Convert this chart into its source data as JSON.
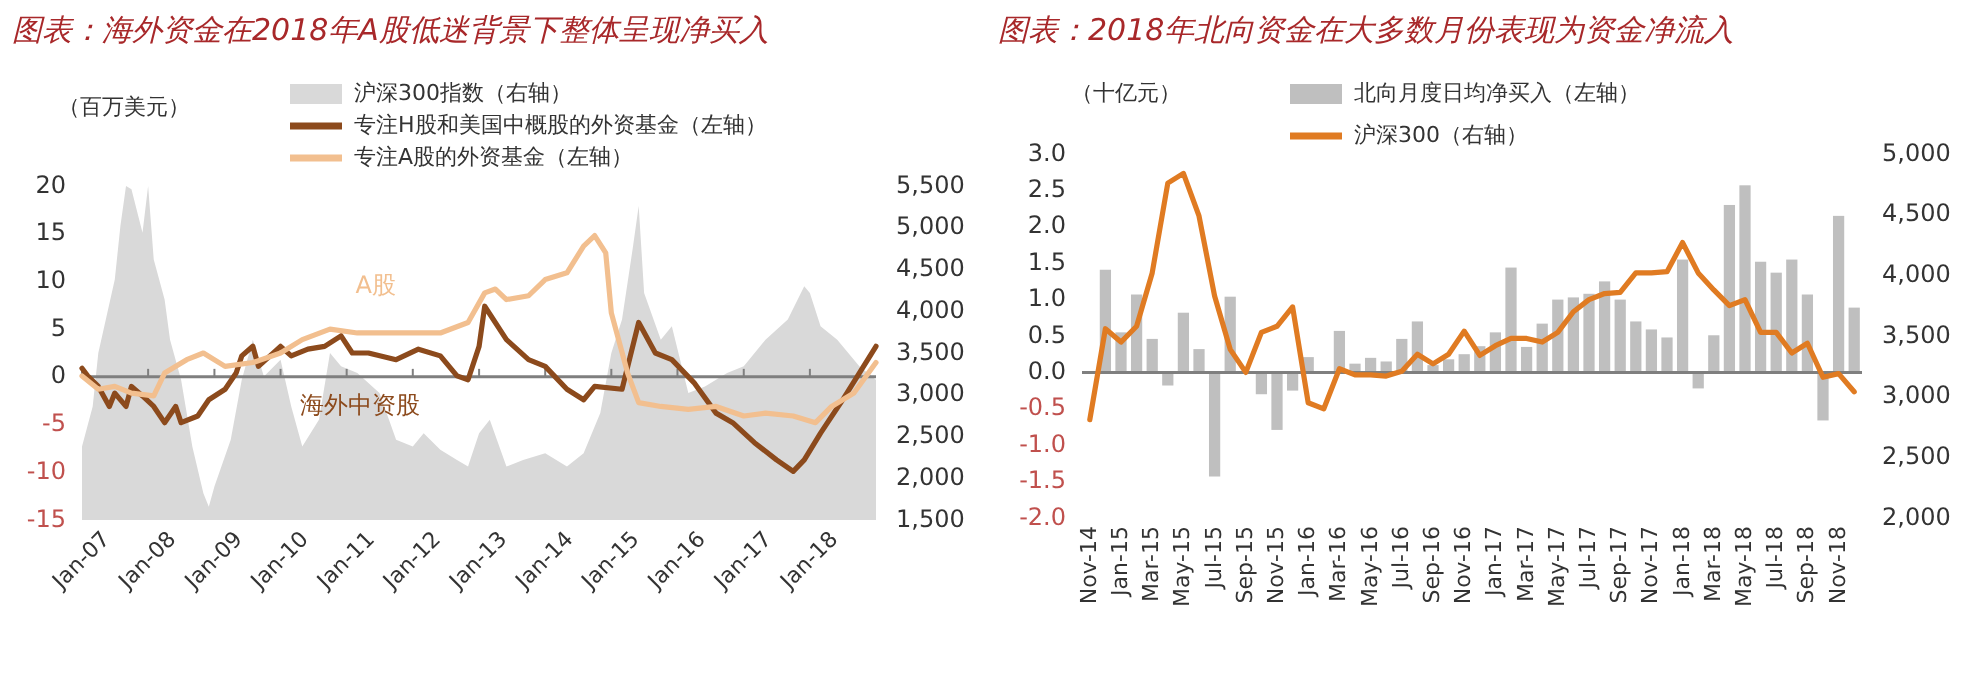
{
  "chart_data": [
    {
      "type": "line",
      "title": "图表：海外资金在2018年A股低迷背景下整体呈现净买入",
      "ylabel": "（百万美元）",
      "legend": "top",
      "xlim": [
        "2007-01",
        "2019-01"
      ],
      "xticks": [
        {
          "value": "2007-01",
          "label": "Jan-07"
        },
        {
          "value": "2008-01",
          "label": "Jan-08"
        },
        {
          "value": "2009-01",
          "label": "Jan-09"
        },
        {
          "value": "2010-01",
          "label": "Jan-10"
        },
        {
          "value": "2011-01",
          "label": "Jan-11"
        },
        {
          "value": "2012-01",
          "label": "Jan-12"
        },
        {
          "value": "2013-01",
          "label": "Jan-13"
        },
        {
          "value": "2014-01",
          "label": "Jan-14"
        },
        {
          "value": "2015-01",
          "label": "Jan-15"
        },
        {
          "value": "2016-01",
          "label": "Jan-16"
        },
        {
          "value": "2017-01",
          "label": "Jan-17"
        },
        {
          "value": "2018-01",
          "label": "Jan-18"
        }
      ],
      "ylim": [
        -15,
        20
      ],
      "yticks": [
        -15,
        -10,
        -5,
        0,
        5,
        10,
        15,
        20
      ],
      "y2lim": [
        1500,
        5500
      ],
      "y2ticks": [
        {
          "value": 1500,
          "label": "1,500"
        },
        {
          "value": 2000,
          "label": "2,000"
        },
        {
          "value": 2500,
          "label": "2,500"
        },
        {
          "value": 3000,
          "label": "3,000"
        },
        {
          "value": 3500,
          "label": "3,500"
        },
        {
          "value": 4000,
          "label": "4,000"
        },
        {
          "value": 4500,
          "label": "4,500"
        },
        {
          "value": 5000,
          "label": "5,000"
        },
        {
          "value": 5500,
          "label": "5,500"
        }
      ],
      "series": [
        {
          "name": "沪深300指数（右轴）",
          "type": "area",
          "axis": "y2",
          "color": "#d9d9d9",
          "x": [
            "2007-01",
            "2007-03",
            "2007-04",
            "2007-07",
            "2007-08",
            "2007-09",
            "2007-10",
            "2007-12",
            "2008-01",
            "2008-02",
            "2008-04",
            "2008-05",
            "2008-07",
            "2008-09",
            "2008-11",
            "2008-12",
            "2009-01",
            "2009-04",
            "2009-06",
            "2009-08",
            "2009-10",
            "2010-01",
            "2010-03",
            "2010-05",
            "2010-08",
            "2010-10",
            "2010-12",
            "2011-03",
            "2011-07",
            "2011-10",
            "2012-01",
            "2012-03",
            "2012-06",
            "2012-09",
            "2012-11",
            "2013-01",
            "2013-03",
            "2013-06",
            "2013-09",
            "2014-01",
            "2014-05",
            "2014-08",
            "2014-11",
            "2015-01",
            "2015-03",
            "2015-05",
            "2015-06",
            "2015-07",
            "2015-10",
            "2015-12",
            "2016-03",
            "2016-06",
            "2016-10",
            "2017-01",
            "2017-05",
            "2017-09",
            "2017-12",
            "2018-01",
            "2018-03",
            "2018-06",
            "2018-10",
            "2019-01"
          ],
          "values": [
            2380,
            2860,
            3500,
            4380,
            5020,
            5500,
            5460,
            4940,
            5500,
            4620,
            4140,
            3660,
            3180,
            2380,
            1820,
            1660,
            1900,
            2460,
            3180,
            3660,
            3220,
            3420,
            2860,
            2380,
            2700,
            3500,
            3340,
            3260,
            3020,
            2460,
            2380,
            2540,
            2340,
            2220,
            2140,
            2540,
            2700,
            2140,
            2220,
            2300,
            2140,
            2300,
            2780,
            3500,
            3900,
            4780,
            5260,
            4220,
            3660,
            3820,
            3020,
            3100,
            3260,
            3340,
            3660,
            3900,
            4300,
            4220,
            3820,
            3660,
            3340,
            3180
          ]
        },
        {
          "name": "专注H股和美国中概股的外资基金（左轴）",
          "color": "#8c4a1c",
          "x": [
            "2007-01",
            "2007-02",
            "2007-04",
            "2007-06",
            "2007-07",
            "2007-09",
            "2007-10",
            "2007-12",
            "2008-02",
            "2008-04",
            "2008-06",
            "2008-07",
            "2008-10",
            "2008-12",
            "2009-03",
            "2009-05",
            "2009-06",
            "2009-08",
            "2009-09",
            "2010-01",
            "2010-03",
            "2010-06",
            "2010-09",
            "2010-12",
            "2011-02",
            "2011-05",
            "2011-10",
            "2012-02",
            "2012-06",
            "2012-09",
            "2012-11",
            "2013-01",
            "2013-02",
            "2013-06",
            "2013-10",
            "2014-01",
            "2014-05",
            "2014-08",
            "2014-10",
            "2015-03",
            "2015-06",
            "2015-09",
            "2015-12",
            "2016-04",
            "2016-08",
            "2016-11",
            "2017-03",
            "2017-07",
            "2017-10",
            "2017-12",
            "2018-03",
            "2018-07",
            "2018-10",
            "2019-01"
          ],
          "values": [
            0.9,
            0.1,
            -1.0,
            -3.1,
            -1.7,
            -3.1,
            -1.0,
            -2.0,
            -3.1,
            -4.8,
            -3.1,
            -4.8,
            -4.1,
            -2.4,
            -1.3,
            0.4,
            2.2,
            3.2,
            1.1,
            3.2,
            2.2,
            2.9,
            3.2,
            4.3,
            2.5,
            2.5,
            1.8,
            2.9,
            2.2,
            0.1,
            -0.3,
            3.2,
            7.4,
            3.9,
            1.8,
            1.1,
            -1.3,
            -2.4,
            -1.0,
            -1.3,
            5.7,
            2.5,
            1.8,
            -0.6,
            -3.8,
            -4.8,
            -6.9,
            -8.7,
            -9.9,
            -8.7,
            -5.9,
            -2.4,
            0.4,
            3.2
          ]
        },
        {
          "name": "专注A股的外资基金（左轴）",
          "color": "#f2bf8f",
          "x": [
            "2007-01",
            "2007-04",
            "2007-07",
            "2007-10",
            "2008-02",
            "2008-04",
            "2008-08",
            "2008-11",
            "2009-03",
            "2009-08",
            "2010-01",
            "2010-05",
            "2010-10",
            "2011-03",
            "2011-10",
            "2012-06",
            "2012-11",
            "2013-02",
            "2013-04",
            "2013-06",
            "2013-10",
            "2014-01",
            "2014-05",
            "2014-08",
            "2014-10",
            "2014-12",
            "2015-01",
            "2015-04",
            "2015-06",
            "2015-10",
            "2016-03",
            "2016-08",
            "2017-01",
            "2017-05",
            "2017-10",
            "2018-02",
            "2018-05",
            "2018-09",
            "2019-01"
          ],
          "values": [
            0.1,
            -1.3,
            -1.0,
            -1.7,
            -2.0,
            0.4,
            1.8,
            2.5,
            1.1,
            1.5,
            2.5,
            3.9,
            5.0,
            4.6,
            4.6,
            4.6,
            5.7,
            8.8,
            9.2,
            8.1,
            8.5,
            10.2,
            10.9,
            13.7,
            14.8,
            13.0,
            6.7,
            0.4,
            -2.7,
            -3.1,
            -3.4,
            -3.1,
            -4.1,
            -3.8,
            -4.1,
            -4.8,
            -3.1,
            -1.7,
            1.5
          ]
        }
      ],
      "annotations": [
        "A股",
        "海外中资股"
      ]
    },
    {
      "type": "bar",
      "title": "图表：2018年北向资金在大多数月份表现为资金净流入",
      "ylabel": "（十亿元）",
      "legend": "top",
      "categories": [
        "Nov-14",
        null,
        "Jan-15",
        null,
        "Mar-15",
        null,
        "May-15",
        null,
        "Jul-15",
        null,
        "Sep-15",
        null,
        "Nov-15",
        null,
        "Jan-16",
        null,
        "Mar-16",
        null,
        "May-16",
        null,
        "Jul-16",
        null,
        "Sep-16",
        null,
        "Nov-16",
        null,
        "Jan-17",
        null,
        "Mar-17",
        null,
        "May-17",
        null,
        "Jul-17",
        null,
        "Sep-17",
        null,
        "Nov-17",
        null,
        "Jan-18",
        null,
        "Mar-18",
        null,
        "May-18",
        null,
        "Jul-18",
        null,
        "Sep-18",
        null,
        "Nov-18",
        null
      ],
      "ylim": [
        -2,
        3
      ],
      "yticks": [
        {
          "value": -2,
          "label": "-2.0"
        },
        {
          "value": -1.5,
          "label": "-1.5"
        },
        {
          "value": -1,
          "label": "-1.0"
        },
        {
          "value": -0.5,
          "label": "-0.5"
        },
        {
          "value": 0,
          "label": "0.0"
        },
        {
          "value": 0.5,
          "label": "0.5"
        },
        {
          "value": 1,
          "label": "1.0"
        },
        {
          "value": 1.5,
          "label": "1.5"
        },
        {
          "value": 2,
          "label": "2.0"
        },
        {
          "value": 2.5,
          "label": "2.5"
        },
        {
          "value": 3,
          "label": "3.0"
        }
      ],
      "y2lim": [
        2000,
        5000
      ],
      "y2ticks": [
        {
          "value": 2000,
          "label": "2,000"
        },
        {
          "value": 2500,
          "label": "2,500"
        },
        {
          "value": 3000,
          "label": "3,000"
        },
        {
          "value": 3500,
          "label": "3,500"
        },
        {
          "value": 4000,
          "label": "4,000"
        },
        {
          "value": 4500,
          "label": "4,500"
        },
        {
          "value": 5000,
          "label": "5,000"
        }
      ],
      "series": [
        {
          "name": "北向月度日均净买入（左轴）",
          "color": "#bfbfbf",
          "values": [
            null,
            1.41,
            0.55,
            1.07,
            0.46,
            -0.18,
            0.82,
            0.32,
            -1.43,
            1.04,
            null,
            -0.3,
            -0.79,
            -0.25,
            0.21,
            null,
            0.57,
            0.12,
            0.2,
            0.15,
            0.46,
            0.7,
            0.1,
            0.18,
            0.25,
            0.36,
            0.55,
            1.44,
            0.35,
            0.67,
            1.0,
            1.03,
            1.08,
            1.25,
            1.0,
            0.7,
            0.59,
            0.48,
            1.55,
            -0.22,
            0.51,
            2.3,
            2.57,
            1.52,
            1.37,
            1.55,
            1.07,
            -0.66,
            2.15,
            0.89
          ]
        },
        {
          "name": "沪深300（右轴）",
          "type": "line",
          "axis": "y2",
          "color": "#e07b22",
          "values": [
            2810,
            3560,
            3450,
            3580,
            4020,
            4760,
            4840,
            4490,
            3830,
            3390,
            3200,
            3530,
            3580,
            3740,
            2950,
            2900,
            3230,
            3180,
            3180,
            3170,
            3210,
            3350,
            3270,
            3350,
            3540,
            3340,
            3420,
            3480,
            3480,
            3450,
            3530,
            3700,
            3800,
            3850,
            3860,
            4020,
            4020,
            4030,
            4270,
            4020,
            3880,
            3750,
            3800,
            3530,
            3530,
            3360,
            3440,
            3160,
            3190,
            3040
          ]
        }
      ]
    }
  ]
}
